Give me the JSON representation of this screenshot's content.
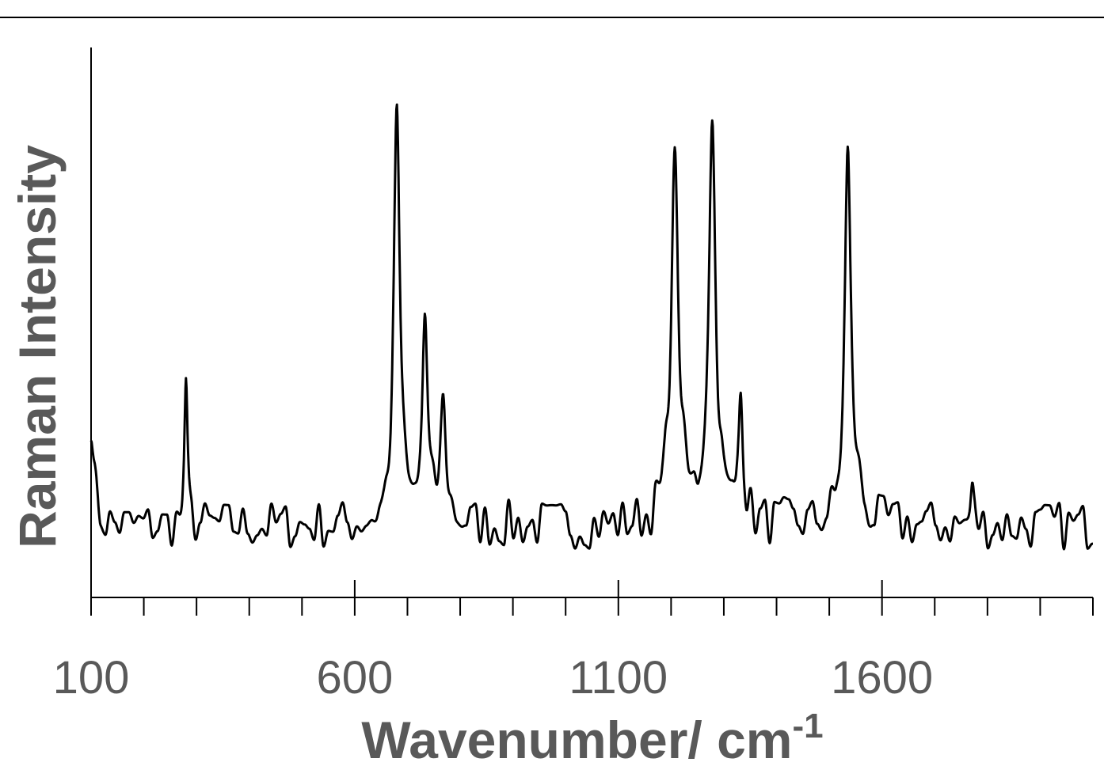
{
  "chart_data": {
    "type": "line",
    "xlabel": "Wavenumber/ cm",
    "xlabel_superscript": "-1",
    "ylabel": "Raman Intensity",
    "xlim": [
      100,
      2000
    ],
    "ylim": [
      0,
      1
    ],
    "x_ticks": [
      100,
      600,
      1100,
      1600
    ],
    "x_minor_tick_step": 100,
    "y_ticks_shown": false,
    "grid": false,
    "line_color": "#000000",
    "label_color": "#595959",
    "series": [
      {
        "peaks": [
          {
            "x": 100,
            "h": 0.2,
            "w": 6
          },
          {
            "x": 280,
            "h": 0.23,
            "w": 3.5
          },
          {
            "x": 680,
            "h": 0.74,
            "w": 7
          },
          {
            "x": 733,
            "h": 0.36,
            "w": 6
          },
          {
            "x": 768,
            "h": 0.21,
            "w": 7
          },
          {
            "x": 1207,
            "h": 0.64,
            "w": 9
          },
          {
            "x": 1278,
            "h": 0.69,
            "w": 8
          },
          {
            "x": 1332,
            "h": 0.26,
            "w": 5
          },
          {
            "x": 1535,
            "h": 0.66,
            "w": 7
          },
          {
            "x": 1552,
            "h": 0.05,
            "w": 10
          },
          {
            "x": 1275,
            "h": 0.03,
            "w": 22
          },
          {
            "x": 1771,
            "h": 0.06,
            "w": 4
          }
        ],
        "baseline": 0.13,
        "noise_amplitude": 0.045,
        "noise_seed": 7
      }
    ]
  }
}
